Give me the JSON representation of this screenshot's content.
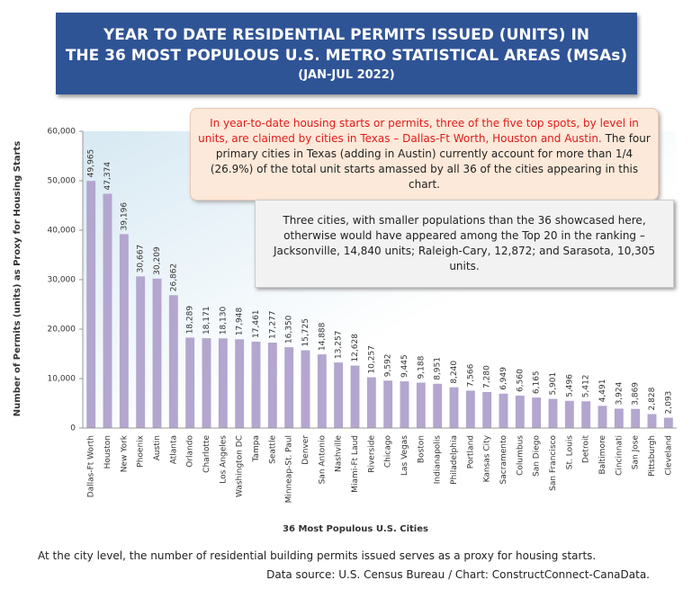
{
  "chart_data": {
    "type": "bar",
    "title": "YEAR TO DATE RESIDENTIAL PERMITS ISSUED (UNITS) IN\nTHE 36 MOST POPULOUS U.S. METRO STATISTICAL AREAS (MSAs)",
    "subtitle": "(JAN-JUL 2022)",
    "y_label": "Number of Permits (units) as Proxy for Housing Starts",
    "x_label": "36 Most Populous U.S. Cities",
    "categories": [
      "Dallas-Ft Worth",
      "Houston",
      "New York",
      "Phoenix",
      "Austin",
      "Atlanta",
      "Orlando",
      "Charlotte",
      "Los Angeles",
      "Washington DC",
      "Tampa",
      "Seattle",
      "Minneap-St. Paul",
      "Denver",
      "San Antonio",
      "Nashville",
      "Miami-Ft Laud",
      "Riverside",
      "Chicago",
      "Las Vegas",
      "Boston",
      "Indianapolis",
      "Philadelphia",
      "Portland",
      "Kansas City",
      "Sacramento",
      "Columbus",
      "San Diego",
      "San Francisco",
      "St. Louis",
      "Detroit",
      "Baltimore",
      "Cincinnati",
      "San Jose",
      "Pittsburgh",
      "Cleveland"
    ],
    "values": [
      49965,
      47374,
      39196,
      30667,
      30209,
      26862,
      18289,
      18171,
      18130,
      17948,
      17461,
      17277,
      16350,
      15725,
      14888,
      13257,
      12628,
      10257,
      9592,
      9445,
      9188,
      8951,
      8240,
      7566,
      7280,
      6949,
      6560,
      6165,
      5901,
      5496,
      5412,
      4491,
      3924,
      3869,
      2828,
      2093
    ],
    "value_labels": [
      "49,965",
      "47,374",
      "39,196",
      "30,667",
      "30,209",
      "26,862",
      "18,289",
      "18,171",
      "18,130",
      "17,948",
      "17,461",
      "17,277",
      "16,350",
      "15,725",
      "14,888",
      "13,257",
      "12,628",
      "10,257",
      "9,592",
      "9,445",
      "9,188",
      "8,951",
      "8,240",
      "7,566",
      "7,280",
      "6,949",
      "6,560",
      "6,165",
      "5,901",
      "5,496",
      "5,412",
      "4,491",
      "3,924",
      "3,869",
      "2,828",
      "2,093"
    ],
    "color": "#b3a6cf",
    "ylim": [
      0,
      60000
    ],
    "yticks": [
      0,
      {
        "value": 10000,
        "label": "10,000"
      },
      {
        "value": 20000,
        "label": "20,000"
      },
      {
        "value": 30000,
        "label": "30,000"
      },
      {
        "value": 40000,
        "label": "40,000"
      },
      {
        "value": 50000,
        "label": "50,000"
      },
      {
        "value": 60000,
        "label": "60,000"
      }
    ],
    "grid": false,
    "notes": [
      "In year-to-date housing starts or permits, three of the five top spots, by level in units, are claimed by cities in Texas – Dallas-Ft Worth, Houston and Austin.",
      "The four primary cities in Texas (adding in Austin) currently account for more than  1/4 (26.9%) of the total unit starts amassed by all 36 of the cities appearing in this chart.",
      "Three cities, with smaller populations than the 36 showcased here, otherwise would have appeared among the Top 20 in the ranking – Jacksonville, 14,840 units; Raleigh-Cary, 12,872; and Sarasota, 10,305 units."
    ],
    "footer": "At the city level, the number of residential building permits issued serves as a proxy for housing starts.",
    "source": "Data source: U.S. Census Bureau / Chart: ConstructConnect-CanaData."
  }
}
